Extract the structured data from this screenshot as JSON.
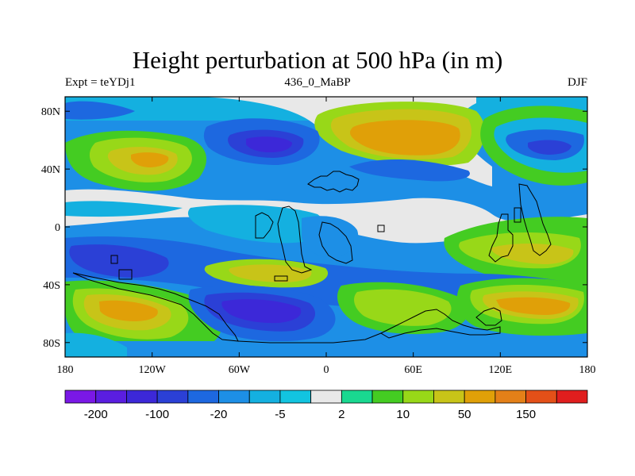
{
  "header": {
    "title": "Height perturbation at 500 hPa (in m)",
    "experiment": "Expt = teYDj1",
    "period": "436_0_MaBP",
    "season": "DJF"
  },
  "axes": {
    "lon_ticks": [
      "180",
      "120W",
      "60W",
      "0",
      "60E",
      "120E",
      "180"
    ],
    "lat_ticks": [
      "80N",
      "40N",
      "0",
      "40S",
      "80S"
    ]
  },
  "colorbar": {
    "colors": [
      "#7a18e6",
      "#5a1ee0",
      "#3c28d8",
      "#2b40d6",
      "#1d68e0",
      "#1d8fe6",
      "#14b0e0",
      "#12c4e0",
      "#e8e8e8",
      "#19d890",
      "#44cc22",
      "#98d818",
      "#c8c418",
      "#e0a008",
      "#e48018",
      "#e45018",
      "#e01e1e"
    ],
    "labels": [
      "-200",
      "-100",
      "-20",
      "-5",
      "2",
      "10",
      "50",
      "150"
    ]
  },
  "map": {
    "projection": "cylindrical equidistant",
    "lon_range": [
      -180,
      180
    ],
    "lat_range": [
      -90,
      90
    ]
  }
}
